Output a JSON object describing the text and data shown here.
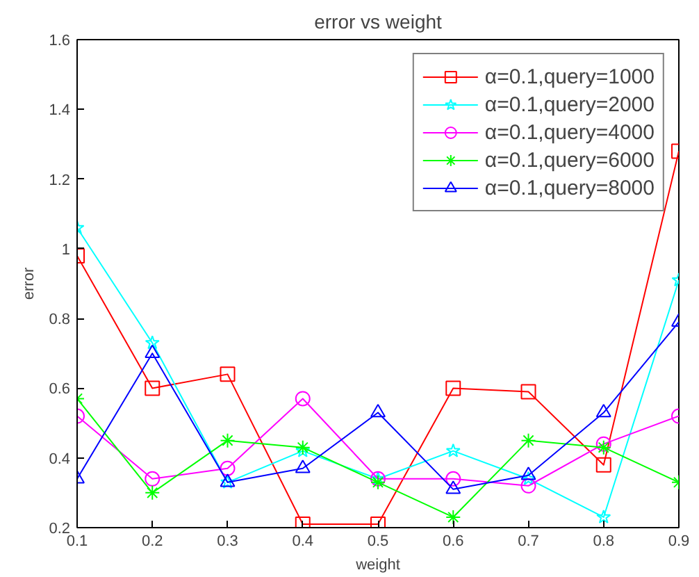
{
  "chart_data": {
    "type": "line",
    "title": "error vs weight",
    "xlabel": "weight",
    "ylabel": "error",
    "x": [
      0.1,
      0.2,
      0.3,
      0.4,
      0.5,
      0.6,
      0.7,
      0.8,
      0.9
    ],
    "xlim": [
      0.1,
      0.9
    ],
    "xticks": [
      0.1,
      0.2,
      0.3,
      0.4,
      0.5,
      0.6,
      0.7,
      0.8,
      0.9
    ],
    "ylim": [
      0.2,
      1.6
    ],
    "yticks": [
      0.2,
      0.4,
      0.6,
      0.8,
      1,
      1.2,
      1.4,
      1.6
    ],
    "grid": false,
    "legend": "top right",
    "line_style": "solid",
    "series": [
      {
        "name": "α=0.1,query=1000",
        "color": "#ff0000",
        "marker": "square",
        "values": [
          0.98,
          0.6,
          0.64,
          0.21,
          0.21,
          0.6,
          0.59,
          0.38,
          1.28
        ]
      },
      {
        "name": "α=0.1,query=2000",
        "color": "#00ffff",
        "marker": "star",
        "values": [
          1.06,
          0.73,
          0.33,
          0.42,
          0.34,
          0.42,
          0.34,
          0.23,
          0.91
        ]
      },
      {
        "name": "α=0.1,query=4000",
        "color": "#ff00ff",
        "marker": "circle",
        "values": [
          0.52,
          0.34,
          0.37,
          0.57,
          0.34,
          0.34,
          0.32,
          0.44,
          0.52
        ]
      },
      {
        "name": "α=0.1,query=6000",
        "color": "#00ff00",
        "marker": "cross",
        "values": [
          0.57,
          0.3,
          0.45,
          0.43,
          0.33,
          0.23,
          0.45,
          0.43,
          0.33
        ]
      },
      {
        "name": "α=0.1,query=8000",
        "color": "#0000ff",
        "marker": "triangle",
        "values": [
          0.34,
          0.7,
          0.33,
          0.37,
          0.53,
          0.31,
          0.35,
          0.53,
          0.79
        ]
      }
    ]
  }
}
